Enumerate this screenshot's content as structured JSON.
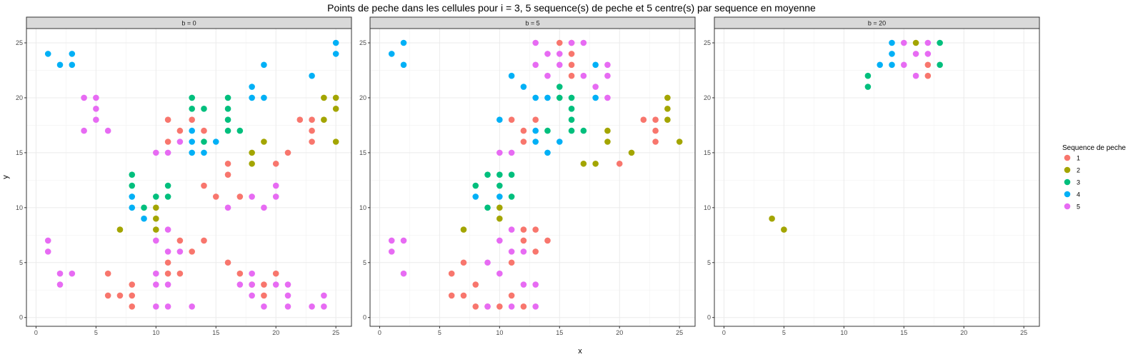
{
  "chart_data": {
    "type": "scatter",
    "title": "Points de peche dans les cellules pour i = 3, 5 sequence(s) de peche et 5 centre(s) par sequence en moyenne",
    "xlabel": "x",
    "ylabel": "y",
    "xlim": [
      -0.8,
      26.3
    ],
    "ylim": [
      -0.8,
      26.3
    ],
    "x_ticks": [
      0,
      5,
      10,
      15,
      20,
      25
    ],
    "y_ticks": [
      0,
      5,
      10,
      15,
      20,
      25
    ],
    "grid": true,
    "legend": {
      "title": "Sequence de peche",
      "position": "right",
      "entries": [
        {
          "label": "1",
          "color": "#F8766D"
        },
        {
          "label": "2",
          "color": "#A3A500"
        },
        {
          "label": "3",
          "color": "#00BF7D"
        },
        {
          "label": "4",
          "color": "#00B0F6"
        },
        {
          "label": "5",
          "color": "#E76BF3"
        }
      ]
    },
    "panels": [
      {
        "label": "b = 0",
        "series": [
          {
            "name": "1",
            "points": [
              [
                6,
                4
              ],
              [
                6,
                2
              ],
              [
                7,
                2
              ],
              [
                8,
                3
              ],
              [
                8,
                2
              ],
              [
                8,
                1
              ],
              [
                11,
                18
              ],
              [
                11,
                16
              ],
              [
                11,
                5
              ],
              [
                11,
                4
              ],
              [
                12,
                17
              ],
              [
                12,
                7
              ],
              [
                12,
                4
              ],
              [
                13,
                18
              ],
              [
                13,
                6
              ],
              [
                14,
                17
              ],
              [
                14,
                12
              ],
              [
                14,
                7
              ],
              [
                15,
                11
              ],
              [
                16,
                14
              ],
              [
                16,
                13
              ],
              [
                16,
                5
              ],
              [
                17,
                11
              ],
              [
                17,
                4
              ],
              [
                18,
                3
              ],
              [
                19,
                3
              ],
              [
                19,
                2
              ],
              [
                20,
                14
              ],
              [
                20,
                4
              ],
              [
                21,
                15
              ],
              [
                22,
                18
              ],
              [
                23,
                18
              ],
              [
                23,
                17
              ],
              [
                23,
                16
              ]
            ]
          },
          {
            "name": "2",
            "points": [
              [
                7,
                8
              ],
              [
                10,
                10
              ],
              [
                10,
                9
              ],
              [
                10,
                8
              ],
              [
                18,
                15
              ],
              [
                18,
                14
              ],
              [
                19,
                16
              ],
              [
                24,
                20
              ],
              [
                24,
                18
              ],
              [
                25,
                20
              ],
              [
                25,
                19
              ],
              [
                25,
                16
              ]
            ]
          },
          {
            "name": "3",
            "points": [
              [
                8,
                13
              ],
              [
                8,
                12
              ],
              [
                9,
                10
              ],
              [
                10,
                11
              ],
              [
                11,
                12
              ],
              [
                11,
                11
              ],
              [
                13,
                20
              ],
              [
                13,
                19
              ],
              [
                14,
                19
              ],
              [
                14,
                16
              ],
              [
                16,
                20
              ],
              [
                16,
                19
              ],
              [
                16,
                18
              ],
              [
                16,
                17
              ],
              [
                17,
                17
              ]
            ]
          },
          {
            "name": "4",
            "points": [
              [
                1,
                24
              ],
              [
                2,
                23
              ],
              [
                3,
                24
              ],
              [
                3,
                23
              ],
              [
                8,
                11
              ],
              [
                8,
                10
              ],
              [
                9,
                9
              ],
              [
                13,
                17
              ],
              [
                13,
                16
              ],
              [
                13,
                15
              ],
              [
                14,
                15
              ],
              [
                15,
                16
              ],
              [
                18,
                21
              ],
              [
                18,
                20
              ],
              [
                19,
                23
              ],
              [
                19,
                20
              ],
              [
                23,
                22
              ],
              [
                25,
                25
              ],
              [
                25,
                24
              ]
            ]
          },
          {
            "name": "5",
            "points": [
              [
                1,
                7
              ],
              [
                1,
                6
              ],
              [
                2,
                4
              ],
              [
                2,
                3
              ],
              [
                3,
                4
              ],
              [
                4,
                20
              ],
              [
                4,
                17
              ],
              [
                5,
                20
              ],
              [
                5,
                19
              ],
              [
                5,
                18
              ],
              [
                6,
                17
              ],
              [
                10,
                15
              ],
              [
                10,
                7
              ],
              [
                10,
                4
              ],
              [
                10,
                3
              ],
              [
                10,
                1
              ],
              [
                11,
                15
              ],
              [
                11,
                8
              ],
              [
                11,
                6
              ],
              [
                11,
                3
              ],
              [
                11,
                1
              ],
              [
                12,
                16
              ],
              [
                12,
                6
              ],
              [
                13,
                1
              ],
              [
                16,
                10
              ],
              [
                17,
                3
              ],
              [
                18,
                11
              ],
              [
                18,
                4
              ],
              [
                18,
                3
              ],
              [
                18,
                2
              ],
              [
                19,
                10
              ],
              [
                19,
                1
              ],
              [
                20,
                12
              ],
              [
                20,
                11
              ],
              [
                20,
                3
              ],
              [
                21,
                3
              ],
              [
                21,
                2
              ],
              [
                21,
                1
              ],
              [
                23,
                1
              ],
              [
                24,
                2
              ],
              [
                24,
                1
              ]
            ]
          }
        ]
      },
      {
        "label": "b = 5",
        "series": [
          {
            "name": "1",
            "points": [
              [
                6,
                4
              ],
              [
                6,
                2
              ],
              [
                7,
                5
              ],
              [
                7,
                2
              ],
              [
                8,
                3
              ],
              [
                8,
                1
              ],
              [
                9,
                1
              ],
              [
                10,
                1
              ],
              [
                11,
                18
              ],
              [
                11,
                5
              ],
              [
                11,
                2
              ],
              [
                12,
                17
              ],
              [
                12,
                16
              ],
              [
                12,
                8
              ],
              [
                12,
                7
              ],
              [
                12,
                1
              ],
              [
                13,
                18
              ],
              [
                13,
                8
              ],
              [
                13,
                6
              ],
              [
                14,
                7
              ],
              [
                15,
                25
              ],
              [
                16,
                25
              ],
              [
                16,
                24
              ],
              [
                16,
                23
              ],
              [
                16,
                22
              ],
              [
                20,
                14
              ],
              [
                22,
                18
              ],
              [
                23,
                18
              ],
              [
                23,
                17
              ],
              [
                23,
                16
              ]
            ]
          },
          {
            "name": "2",
            "points": [
              [
                7,
                8
              ],
              [
                10,
                10
              ],
              [
                10,
                9
              ],
              [
                17,
                14
              ],
              [
                18,
                14
              ],
              [
                19,
                17
              ],
              [
                19,
                16
              ],
              [
                21,
                15
              ],
              [
                24,
                20
              ],
              [
                24,
                19
              ],
              [
                24,
                18
              ],
              [
                25,
                16
              ]
            ]
          },
          {
            "name": "3",
            "points": [
              [
                8,
                12
              ],
              [
                9,
                13
              ],
              [
                9,
                10
              ],
              [
                10,
                13
              ],
              [
                10,
                12
              ],
              [
                11,
                13
              ],
              [
                11,
                11
              ],
              [
                14,
                17
              ],
              [
                15,
                21
              ],
              [
                15,
                20
              ],
              [
                16,
                20
              ],
              [
                16,
                19
              ],
              [
                16,
                18
              ],
              [
                16,
                17
              ],
              [
                17,
                17
              ]
            ]
          },
          {
            "name": "4",
            "points": [
              [
                1,
                24
              ],
              [
                2,
                25
              ],
              [
                2,
                23
              ],
              [
                8,
                11
              ],
              [
                10,
                18
              ],
              [
                10,
                11
              ],
              [
                11,
                22
              ],
              [
                12,
                21
              ],
              [
                13,
                20
              ],
              [
                13,
                17
              ],
              [
                13,
                16
              ],
              [
                14,
                20
              ],
              [
                14,
                15
              ],
              [
                15,
                16
              ],
              [
                18,
                23
              ],
              [
                18,
                20
              ]
            ]
          },
          {
            "name": "5",
            "points": [
              [
                1,
                7
              ],
              [
                1,
                6
              ],
              [
                2,
                7
              ],
              [
                2,
                4
              ],
              [
                9,
                5
              ],
              [
                9,
                1
              ],
              [
                10,
                15
              ],
              [
                10,
                7
              ],
              [
                10,
                4
              ],
              [
                11,
                15
              ],
              [
                11,
                8
              ],
              [
                11,
                6
              ],
              [
                11,
                1
              ],
              [
                12,
                6
              ],
              [
                12,
                3
              ],
              [
                13,
                25
              ],
              [
                13,
                23
              ],
              [
                13,
                3
              ],
              [
                13,
                1
              ],
              [
                14,
                24
              ],
              [
                14,
                22
              ],
              [
                15,
                24
              ],
              [
                15,
                23
              ],
              [
                16,
                25
              ],
              [
                17,
                25
              ],
              [
                17,
                22
              ],
              [
                18,
                21
              ],
              [
                19,
                23
              ],
              [
                19,
                22
              ],
              [
                19,
                20
              ]
            ]
          }
        ]
      },
      {
        "label": "b = 20",
        "series": [
          {
            "name": "1",
            "points": [
              [
                17,
                23
              ],
              [
                17,
                22
              ]
            ]
          },
          {
            "name": "2",
            "points": [
              [
                4,
                9
              ],
              [
                5,
                8
              ],
              [
                16,
                25
              ]
            ]
          },
          {
            "name": "3",
            "points": [
              [
                12,
                22
              ],
              [
                12,
                21
              ],
              [
                18,
                25
              ],
              [
                18,
                23
              ]
            ]
          },
          {
            "name": "4",
            "points": [
              [
                13,
                23
              ],
              [
                14,
                25
              ],
              [
                14,
                24
              ],
              [
                14,
                23
              ]
            ]
          },
          {
            "name": "5",
            "points": [
              [
                15,
                25
              ],
              [
                15,
                23
              ],
              [
                16,
                24
              ],
              [
                16,
                22
              ],
              [
                17,
                25
              ],
              [
                17,
                24
              ]
            ]
          }
        ]
      }
    ]
  }
}
